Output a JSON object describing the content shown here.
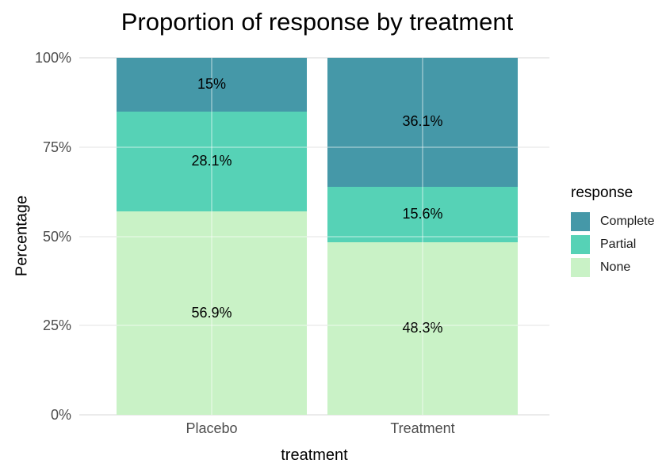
{
  "chart_data": {
    "type": "bar",
    "subtype": "stacked-percentage",
    "title": "Proportion of response by treatment",
    "xlabel": "treatment",
    "ylabel": "Percentage",
    "categories": [
      "Placebo",
      "Treatment"
    ],
    "series": [
      {
        "name": "Complete",
        "values": [
          15,
          36.1
        ],
        "labels": [
          "15%",
          "36.1%"
        ],
        "color": "#4598a8"
      },
      {
        "name": "Partial",
        "values": [
          28.1,
          15.6
        ],
        "labels": [
          "28.1%",
          "15.6%"
        ],
        "color": "#56d2b6"
      },
      {
        "name": "None",
        "values": [
          56.9,
          48.3
        ],
        "labels": [
          "56.9%",
          "48.3%"
        ],
        "color": "#c9f2c6"
      }
    ],
    "y_ticks": [
      {
        "value": 0,
        "label": "0%"
      },
      {
        "value": 25,
        "label": "25%"
      },
      {
        "value": 50,
        "label": "50%"
      },
      {
        "value": 75,
        "label": "75%"
      },
      {
        "value": 100,
        "label": "100%"
      }
    ],
    "ylim": [
      0,
      100
    ],
    "grid": "horizontal-major",
    "gridline_color": "#ebebeb",
    "tick_label_color": "#4d4d4d",
    "legend": {
      "title": "response",
      "position": "right",
      "entries": [
        "Complete",
        "Partial",
        "None"
      ]
    }
  }
}
